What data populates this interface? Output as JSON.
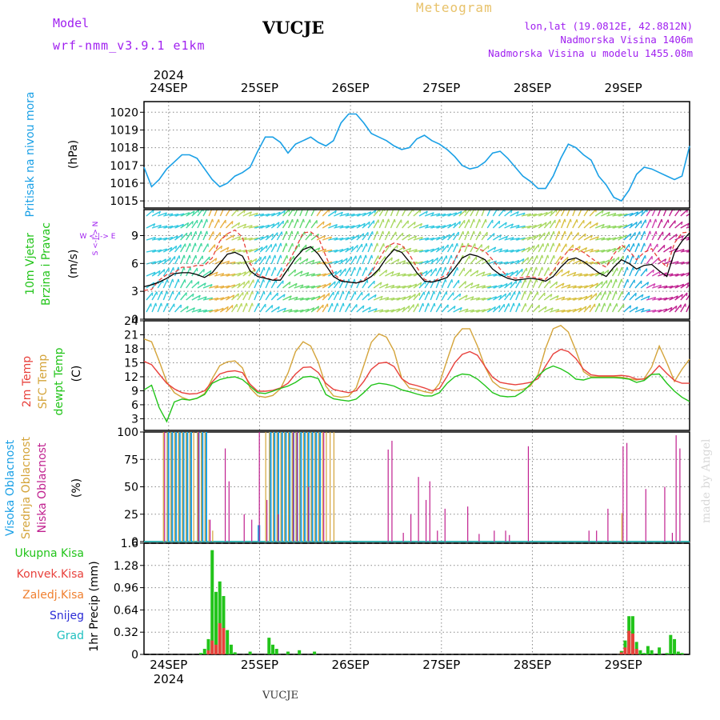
{
  "header": {
    "model_label": "Model",
    "model_name": "wrf-nmm_v3.9.1 e1km",
    "station": "VUCJE",
    "product": "Meteogram",
    "lonlat": "lon,lat (19.0812E, 42.8812N)",
    "elevation": "Nadmorska Visina 1406m",
    "model_elevation": "Nadmorska Visina u modelu 1455.08m"
  },
  "footer": {
    "station": "VUCJE",
    "watermark": "made by Angel"
  },
  "colors": {
    "pressure": "#1aa0e6",
    "temp2m": "#e8413c",
    "sfc": "#d4a43a",
    "dew": "#22c41a",
    "high_cloud": "#1aa0e6",
    "mid_cloud": "#d4a43a",
    "low_cloud": "#c0208f",
    "total_precip": "#22c41a",
    "conv_precip": "#e8413c",
    "frozen": "#f08030",
    "snow": "#2b2bd6",
    "graupel": "#20c0c0",
    "wind_title": "#22c41a",
    "compass": "#a020f0"
  },
  "chart_data": [
    {
      "type": "line",
      "title": "",
      "ylabel": "(hPa)",
      "side_label": [
        "Pritisak na nivou mora"
      ],
      "x_top_year": "2024",
      "x_ticks": [
        "24SEP",
        "25SEP",
        "26SEP",
        "27SEP",
        "28SEP",
        "29SEP"
      ],
      "ylim": [
        1014.6,
        1020.6
      ],
      "yticks": [
        "1015",
        "1016",
        "1017",
        "1018",
        "1019",
        "1020"
      ],
      "x": [
        0,
        2,
        4,
        6,
        8,
        10,
        12,
        14,
        16,
        18,
        20,
        22,
        24,
        26,
        28,
        30,
        32,
        34,
        36,
        38,
        40,
        42,
        44,
        46,
        48,
        50,
        52,
        54,
        56,
        58,
        60,
        62,
        64,
        66,
        68,
        70,
        72,
        74,
        76,
        78,
        80,
        82,
        84,
        86,
        88,
        90,
        92,
        94,
        96,
        98,
        100,
        102,
        104,
        106,
        108,
        110,
        112,
        114,
        116,
        118,
        120,
        122,
        124,
        126,
        128,
        130,
        132,
        134,
        136,
        138,
        140,
        142,
        144
      ],
      "series": [
        {
          "values": [
            1016.9,
            1015.8,
            1016.2,
            1016.8,
            1017.2,
            1017.6,
            1017.6,
            1017.4,
            1016.8,
            1016.2,
            1015.8,
            1016.0,
            1016.4,
            1016.6,
            1016.9,
            1017.8,
            1018.6,
            1018.6,
            1018.3,
            1017.7,
            1018.2,
            1018.4,
            1018.6,
            1018.3,
            1018.1,
            1018.4,
            1019.4,
            1019.9,
            1019.9,
            1019.4,
            1018.8,
            1018.6,
            1018.4,
            1018.1,
            1017.9,
            1018.0,
            1018.5,
            1018.7,
            1018.4,
            1018.2,
            1017.9,
            1017.5,
            1017.0,
            1016.8,
            1016.9,
            1017.2,
            1017.7,
            1017.8,
            1017.4,
            1016.9,
            1016.4,
            1016.1,
            1015.7,
            1015.7,
            1016.4,
            1017.4,
            1018.2,
            1018.0,
            1017.6,
            1017.3,
            1016.4,
            1015.9,
            1015.2,
            1015.0,
            1015.6,
            1016.5,
            1016.9,
            1016.8,
            1016.6,
            1016.4,
            1016.2,
            1016.4,
            1018.1
          ]
        }
      ]
    },
    {
      "type": "line",
      "ylabel": "(m/s)",
      "side_label": [
        "10m Vjetar",
        "Brzina i Pravac"
      ],
      "compass": {
        "n": "N",
        "s": "S",
        "e": "E",
        "w": "W"
      },
      "ylim": [
        0,
        11.8
      ],
      "yticks": [
        "0",
        "3",
        "6",
        "9"
      ],
      "x": [
        0,
        2,
        4,
        6,
        8,
        10,
        12,
        14,
        16,
        18,
        20,
        22,
        24,
        26,
        28,
        30,
        32,
        34,
        36,
        38,
        40,
        42,
        44,
        46,
        48,
        50,
        52,
        54,
        56,
        58,
        60,
        62,
        64,
        66,
        68,
        70,
        72,
        74,
        76,
        78,
        80,
        82,
        84,
        86,
        88,
        90,
        92,
        94,
        96,
        98,
        100,
        102,
        104,
        106,
        108,
        110,
        112,
        114,
        116,
        118,
        120,
        122,
        124,
        126,
        128,
        130,
        132,
        134,
        136,
        138,
        140,
        142,
        144
      ],
      "series": [
        {
          "name": "speed",
          "values": [
            3.5,
            3.7,
            4.0,
            4.4,
            4.9,
            5.0,
            5.0,
            4.8,
            4.5,
            5.0,
            6.0,
            7.0,
            7.2,
            6.8,
            5.2,
            4.6,
            4.4,
            4.2,
            4.2,
            5.4,
            6.6,
            7.5,
            7.8,
            7.0,
            5.8,
            4.6,
            4.1,
            4.0,
            3.9,
            4.1,
            4.6,
            5.4,
            6.6,
            7.5,
            7.2,
            6.2,
            5.0,
            4.1,
            4.0,
            4.2,
            4.5,
            5.5,
            6.6,
            7.0,
            6.8,
            6.4,
            5.4,
            4.8,
            4.4,
            4.2,
            4.3,
            4.4,
            4.3,
            4.1,
            4.6,
            5.6,
            6.4,
            6.6,
            6.2,
            5.6,
            5.0,
            4.6,
            5.6,
            6.4,
            6.0,
            5.4,
            5.8,
            5.9,
            5.2,
            4.6,
            7.2,
            8.4,
            9.3
          ]
        },
        {
          "name": "gust",
          "values": [
            3.1,
            3.2,
            4.2,
            4.8,
            5.0,
            5.6,
            5.6,
            5.8,
            5.8,
            6.6,
            8.4,
            9.2,
            9.6,
            8.8,
            6.0,
            4.8,
            4.5,
            4.2,
            4.6,
            6.0,
            7.6,
            9.3,
            9.4,
            8.8,
            6.8,
            4.9,
            4.2,
            4.0,
            3.9,
            4.2,
            5.0,
            6.4,
            7.8,
            8.2,
            8.0,
            7.0,
            5.6,
            4.3,
            4.0,
            4.4,
            4.8,
            6.4,
            7.8,
            7.9,
            7.6,
            7.3,
            6.4,
            5.4,
            4.6,
            4.4,
            4.5,
            4.6,
            4.4,
            4.3,
            5.2,
            6.4,
            7.4,
            7.6,
            7.2,
            6.6,
            6.0,
            5.6,
            7.0,
            8.0,
            7.4,
            6.4,
            7.2,
            7.6,
            6.4,
            5.6,
            8.2,
            9.3,
            9.4
          ]
        }
      ]
    },
    {
      "type": "line",
      "ylabel": "(C)",
      "side_label": [
        "2m Temp",
        "SFC Temp",
        "dewpt Temp"
      ],
      "ylim": [
        0.5,
        24
      ],
      "yticks": [
        "3",
        "6",
        "9",
        "12",
        "15",
        "18",
        "21",
        "24"
      ],
      "x": [
        0,
        2,
        4,
        6,
        8,
        10,
        12,
        14,
        16,
        18,
        20,
        22,
        24,
        26,
        28,
        30,
        32,
        34,
        36,
        38,
        40,
        42,
        44,
        46,
        48,
        50,
        52,
        54,
        56,
        58,
        60,
        62,
        64,
        66,
        68,
        70,
        72,
        74,
        76,
        78,
        80,
        82,
        84,
        86,
        88,
        90,
        92,
        94,
        96,
        98,
        100,
        102,
        104,
        106,
        108,
        110,
        112,
        114,
        116,
        118,
        120,
        122,
        124,
        126,
        128,
        130,
        132,
        134,
        136,
        138,
        140,
        142,
        144
      ],
      "series": [
        {
          "name": "2m Temp",
          "values": [
            15.3,
            14.6,
            12.6,
            10.6,
            9.4,
            8.6,
            8.3,
            8.4,
            9.0,
            10.9,
            12.6,
            13.1,
            13.3,
            12.9,
            10.4,
            8.9,
            8.9,
            9.1,
            9.6,
            10.6,
            12.6,
            14.0,
            14.1,
            12.9,
            10.6,
            9.3,
            8.9,
            8.6,
            9.0,
            11.0,
            13.6,
            14.9,
            15.1,
            14.2,
            11.6,
            10.5,
            10.1,
            9.6,
            9.0,
            9.5,
            12.1,
            15.0,
            16.8,
            17.4,
            16.6,
            14.2,
            11.9,
            10.8,
            10.5,
            10.3,
            10.5,
            10.8,
            11.6,
            14.3,
            16.9,
            17.9,
            17.4,
            15.9,
            13.6,
            12.4,
            12.2,
            12.2,
            12.2,
            12.3,
            12.1,
            11.5,
            11.5,
            12.6,
            14.4,
            12.7,
            11.2,
            10.6,
            10.6
          ]
        },
        {
          "name": "SFC Temp",
          "values": [
            20.1,
            19.5,
            15.4,
            10.9,
            8.6,
            7.6,
            7.0,
            7.4,
            8.4,
            11.6,
            14.4,
            15.2,
            15.4,
            13.9,
            9.6,
            7.9,
            7.6,
            8.0,
            9.4,
            12.8,
            17.4,
            19.5,
            18.6,
            15.1,
            10.0,
            7.9,
            7.6,
            7.8,
            9.6,
            14.4,
            19.4,
            21.2,
            20.5,
            17.5,
            11.7,
            9.6,
            9.3,
            8.8,
            8.5,
            10.6,
            15.6,
            20.4,
            22.3,
            22.3,
            18.6,
            14.1,
            11.0,
            9.7,
            9.3,
            9.0,
            9.3,
            10.0,
            12.5,
            18.1,
            22.3,
            23.0,
            21.6,
            17.6,
            13.1,
            12.0,
            12.0,
            12.0,
            12.0,
            11.9,
            11.6,
            11.3,
            11.6,
            14.1,
            18.6,
            15.0,
            11.0,
            13.6,
            15.8
          ]
        },
        {
          "name": "dewpt Temp",
          "values": [
            9.2,
            10.2,
            5.4,
            2.4,
            6.6,
            7.2,
            7.0,
            7.4,
            8.2,
            10.6,
            11.4,
            11.8,
            12.0,
            11.4,
            10.0,
            8.6,
            8.4,
            8.9,
            9.5,
            10.0,
            10.8,
            11.9,
            12.1,
            11.6,
            8.2,
            7.3,
            7.0,
            6.8,
            7.2,
            8.6,
            10.2,
            10.6,
            10.4,
            10.0,
            9.2,
            8.8,
            8.3,
            7.9,
            7.9,
            8.6,
            10.6,
            12.0,
            12.6,
            12.4,
            11.5,
            10.1,
            8.6,
            7.9,
            7.7,
            7.8,
            8.8,
            10.4,
            12.2,
            13.6,
            14.3,
            13.7,
            12.8,
            11.5,
            11.3,
            11.8,
            11.8,
            11.8,
            11.8,
            11.7,
            11.5,
            10.8,
            11.2,
            12.5,
            12.6,
            10.6,
            8.9,
            7.6,
            6.7
          ]
        }
      ]
    },
    {
      "type": "bar",
      "ylabel": "(%)",
      "side_label": [
        "Visoka Oblacnost",
        "Srednja Oblacnost",
        "Niska Oblacnost"
      ],
      "ylim": [
        0,
        100
      ],
      "yticks": [
        "0",
        "25",
        "50",
        "75",
        "100"
      ],
      "series": [
        {
          "name": "Visoka Oblacnost",
          "x": [
            6,
            7,
            8,
            9,
            10,
            11,
            12,
            14,
            15,
            16,
            30,
            33,
            34,
            35,
            36,
            37,
            38,
            39,
            40,
            41,
            42,
            43,
            44,
            45,
            46
          ],
          "values": [
            100,
            100,
            100,
            100,
            100,
            100,
            100,
            100,
            100,
            100,
            15,
            100,
            100,
            100,
            100,
            100,
            100,
            100,
            100,
            100,
            100,
            100,
            100,
            100,
            100
          ]
        },
        {
          "name": "Srednja Oblacnost",
          "x": [
            5,
            6,
            7,
            8,
            9,
            10,
            11,
            12,
            13,
            14,
            15,
            16,
            17,
            18,
            32,
            33,
            34,
            35,
            36,
            37,
            38,
            39,
            40,
            41,
            42,
            43,
            44,
            45,
            46,
            47,
            48,
            49,
            50,
            126
          ],
          "values": [
            100,
            100,
            100,
            100,
            100,
            100,
            100,
            100,
            100,
            100,
            100,
            100,
            20,
            10,
            100,
            100,
            100,
            100,
            100,
            100,
            100,
            100,
            100,
            100,
            100,
            100,
            100,
            100,
            100,
            100,
            100,
            100,
            100,
            26
          ]
        },
        {
          "name": "Niska Oblacnost",
          "x": [
            5,
            14,
            17,
            21,
            22,
            26,
            28,
            30,
            32,
            35,
            39,
            40,
            43,
            47,
            64,
            65,
            68,
            70,
            72,
            74,
            75,
            77,
            79,
            85,
            88,
            92,
            95,
            96,
            101,
            117,
            119,
            122,
            126,
            127,
            132,
            137,
            139,
            140,
            141
          ],
          "values": [
            100,
            100,
            20,
            85,
            55,
            25,
            20,
            100,
            38,
            25,
            100,
            100,
            50,
            100,
            84,
            92,
            8,
            25,
            59,
            38,
            55,
            10,
            30,
            32,
            7,
            10,
            10,
            6,
            87,
            10,
            10,
            30,
            87,
            90,
            48,
            50,
            8,
            97,
            85
          ]
        }
      ]
    },
    {
      "type": "bar",
      "ylabel": "1hr Precip (mm)",
      "side_label": [
        "Ukupna Kisa",
        "Konvek.Kisa",
        "Zaledj.Kisa",
        "Snijeg",
        "Grad"
      ],
      "ylim": [
        0,
        1.6
      ],
      "yticks": [
        "0",
        "0.32",
        "0.64",
        "0.96",
        "1.28",
        "1.6"
      ],
      "x_ticks": [
        "24SEP",
        "25SEP",
        "26SEP",
        "27SEP",
        "28SEP",
        "29SEP"
      ],
      "x_bottom_year": "2024",
      "series": [
        {
          "name": "Ukupna Kisa",
          "x": [
            15,
            16,
            17,
            18,
            19,
            20,
            21,
            22,
            23,
            24,
            28,
            33,
            34,
            35,
            38,
            41,
            45,
            126,
            127,
            128,
            129,
            130,
            131,
            132,
            133,
            134,
            136,
            138,
            139,
            140,
            141,
            142
          ],
          "values": [
            0.02,
            0.08,
            0.22,
            1.5,
            0.9,
            1.05,
            0.84,
            0.35,
            0.14,
            0.03,
            0.04,
            0.24,
            0.14,
            0.08,
            0.04,
            0.06,
            0.04,
            0.05,
            0.2,
            0.55,
            0.55,
            0.18,
            0.06,
            0.02,
            0.12,
            0.06,
            0.1,
            0.02,
            0.28,
            0.22,
            0.04,
            0.02
          ]
        },
        {
          "name": "Konvek.Kisa",
          "x": [
            17,
            18,
            19,
            20,
            21,
            126,
            127,
            128,
            129,
            130
          ],
          "values": [
            0.06,
            0.2,
            0.14,
            0.45,
            0.38,
            0.03,
            0.1,
            0.34,
            0.3,
            0.08
          ]
        },
        {
          "name": "Zaledj.Kisa",
          "x": [],
          "values": []
        },
        {
          "name": "Snijeg",
          "x": [],
          "values": []
        },
        {
          "name": "Grad",
          "x": [],
          "values": []
        }
      ]
    }
  ]
}
